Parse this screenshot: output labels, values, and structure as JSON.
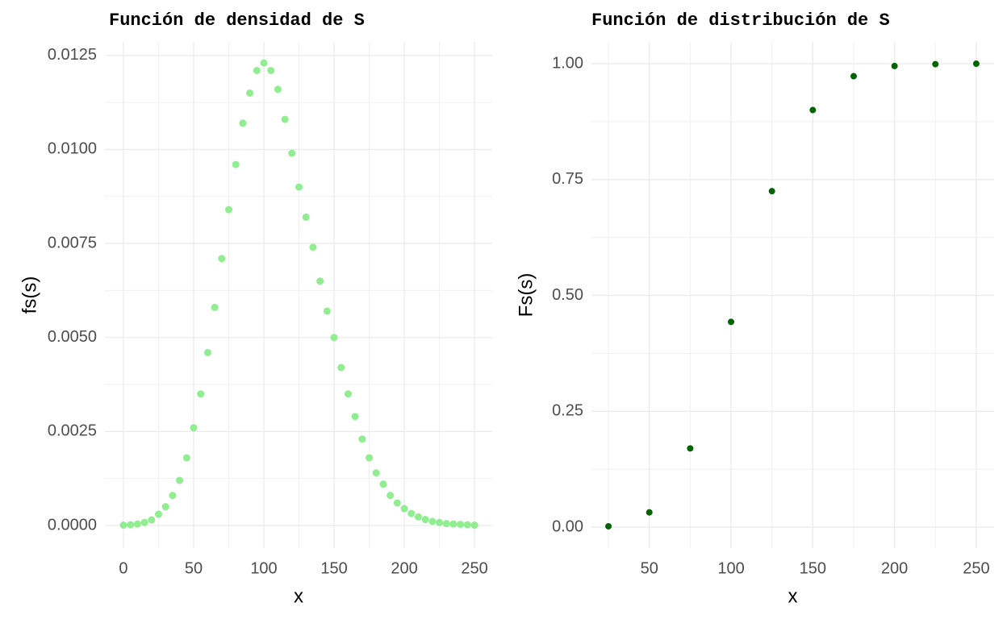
{
  "chart_data": [
    {
      "type": "scatter",
      "title": "Función de densidad de S",
      "x_label": "x",
      "y_label": "fs(s)",
      "x": [
        0,
        5,
        10,
        15,
        20,
        25,
        30,
        35,
        40,
        45,
        50,
        55,
        60,
        65,
        70,
        75,
        80,
        85,
        90,
        95,
        100,
        105,
        110,
        115,
        120,
        125,
        130,
        135,
        140,
        145,
        150,
        155,
        160,
        165,
        170,
        175,
        180,
        185,
        190,
        195,
        200,
        205,
        210,
        215,
        220,
        225,
        230,
        235,
        240,
        245,
        250
      ],
      "values": [
        1e-05,
        2e-05,
        4e-05,
        8e-05,
        0.00015,
        0.0003,
        0.0005,
        0.0008,
        0.0012,
        0.0018,
        0.0026,
        0.0035,
        0.0046,
        0.0058,
        0.0071,
        0.0084,
        0.0096,
        0.0107,
        0.0115,
        0.0121,
        0.0123,
        0.0121,
        0.0116,
        0.0108,
        0.0099,
        0.009,
        0.0082,
        0.0074,
        0.0065,
        0.0057,
        0.005,
        0.0042,
        0.0035,
        0.0029,
        0.0023,
        0.0018,
        0.0014,
        0.0011,
        0.0008,
        0.0006,
        0.00045,
        0.00032,
        0.00023,
        0.00016,
        0.00011,
        8e-05,
        5e-05,
        4e-05,
        3e-05,
        2e-05,
        1e-05
      ],
      "color": "#90ee90",
      "xlim": [
        -13.2,
        262.6
      ],
      "xticks": [
        0,
        50,
        100,
        150,
        200,
        250
      ],
      "ylim": [
        -0.0006,
        0.01286
      ],
      "yticks": [
        {
          "value": 0,
          "label": "0.0000"
        },
        {
          "value": 0.0025,
          "label": "0.0025"
        },
        {
          "value": 0.005,
          "label": "0.0050"
        },
        {
          "value": 0.0075,
          "label": "0.0075"
        },
        {
          "value": 0.01,
          "label": "0.0100"
        },
        {
          "value": 0.0125,
          "label": "0.0125"
        }
      ],
      "grid": true
    },
    {
      "type": "scatter",
      "title": "Función de distribución de S",
      "x_label": "x",
      "y_label": "Fs(s)",
      "x": [
        25,
        50,
        75,
        100,
        125,
        150,
        175,
        200,
        225,
        250
      ],
      "values": [
        0.002,
        0.032,
        0.17,
        0.443,
        0.725,
        0.9,
        0.973,
        0.995,
        0.999,
        1.0
      ],
      "color": "#006400",
      "xlim": [
        14.6,
        260.9
      ],
      "xticks": [
        50,
        100,
        150,
        200,
        250
      ],
      "ylim": [
        -0.045,
        1.047
      ],
      "yticks": [
        {
          "value": 0,
          "label": "0.00"
        },
        {
          "value": 0.25,
          "label": "0.25"
        },
        {
          "value": 0.5,
          "label": "0.50"
        },
        {
          "value": 0.75,
          "label": "0.75"
        },
        {
          "value": 1,
          "label": "1.00"
        }
      ],
      "grid": true
    }
  ]
}
